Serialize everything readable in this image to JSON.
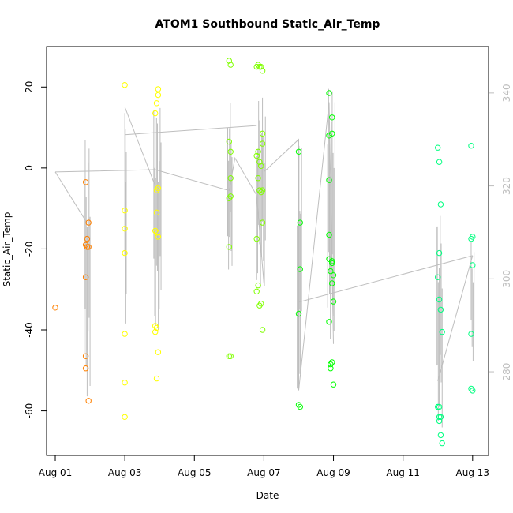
{
  "chart_data": {
    "type": "scatter",
    "title": "ATOM1 Southbound Static_Air_Temp",
    "xlabel": "Date",
    "ylabel": "Static_Air_Temp",
    "x_ticks": [
      "Aug 01",
      "Aug 03",
      "Aug 05",
      "Aug 07",
      "Aug 09",
      "Aug 11",
      "Aug 13"
    ],
    "xlim": [
      "2016-07-31T18:00",
      "2016-08-13T11:00"
    ],
    "ylim": [
      -71,
      30
    ],
    "y_ticks": [
      -60,
      -40,
      -20,
      0,
      20
    ],
    "y_tick_labels": [
      "-60",
      "-40",
      "-20",
      "0",
      "20"
    ],
    "y2lim": [
      262,
      350
    ],
    "y2_ticks": [
      280,
      300,
      320,
      340
    ],
    "y2_tick_labels": [
      "280",
      "300",
      "320",
      "340"
    ],
    "grid": false,
    "legend": "none",
    "point_colors": [
      "#FF8000",
      "#FFFF00",
      "#80FF00",
      "#00FF00",
      "#00FF80"
    ],
    "line_color": "#bebebe",
    "series": [
      {
        "color": "#FF8000",
        "points": [
          {
            "x": "2016-08-01T00:00",
            "y": -34.5
          },
          {
            "x": "2016-08-01T21:00",
            "y": -3.5
          },
          {
            "x": "2016-08-01T21:00",
            "y": -19.0
          },
          {
            "x": "2016-08-01T21:00",
            "y": -27.0
          },
          {
            "x": "2016-08-01T21:00",
            "y": -46.5
          },
          {
            "x": "2016-08-01T21:00",
            "y": -49.5
          },
          {
            "x": "2016-08-01T22:00",
            "y": -19.5
          },
          {
            "x": "2016-08-01T22:00",
            "y": -17.5
          },
          {
            "x": "2016-08-01T23:00",
            "y": -13.5
          },
          {
            "x": "2016-08-01T23:00",
            "y": -19.5
          },
          {
            "x": "2016-08-01T23:00",
            "y": -57.5
          }
        ]
      },
      {
        "color": "#FFFF00",
        "points": [
          {
            "x": "2016-08-03T00:00",
            "y": 20.5
          },
          {
            "x": "2016-08-03T00:00",
            "y": -10.5
          },
          {
            "x": "2016-08-03T00:00",
            "y": -15.0
          },
          {
            "x": "2016-08-03T00:00",
            "y": -21.0
          },
          {
            "x": "2016-08-03T00:00",
            "y": -41.0
          },
          {
            "x": "2016-08-03T00:00",
            "y": -53.0
          },
          {
            "x": "2016-08-03T00:00",
            "y": -61.5
          },
          {
            "x": "2016-08-03T21:00",
            "y": 13.5
          },
          {
            "x": "2016-08-03T21:00",
            "y": -15.5
          },
          {
            "x": "2016-08-03T21:00",
            "y": -39.0
          },
          {
            "x": "2016-08-03T21:00",
            "y": -40.5
          },
          {
            "x": "2016-08-03T22:00",
            "y": 16.0
          },
          {
            "x": "2016-08-03T22:00",
            "y": -5.5
          },
          {
            "x": "2016-08-03T22:00",
            "y": -11.0
          },
          {
            "x": "2016-08-03T22:00",
            "y": -16.0
          },
          {
            "x": "2016-08-03T22:00",
            "y": -39.5
          },
          {
            "x": "2016-08-03T22:00",
            "y": -52.0
          },
          {
            "x": "2016-08-03T23:00",
            "y": 19.5
          },
          {
            "x": "2016-08-03T23:00",
            "y": 18.0
          },
          {
            "x": "2016-08-03T23:00",
            "y": -5.0
          },
          {
            "x": "2016-08-03T23:00",
            "y": -17.0
          },
          {
            "x": "2016-08-03T23:00",
            "y": -45.5
          }
        ]
      },
      {
        "color": "#80FF00",
        "points": [
          {
            "x": "2016-08-06T00:00",
            "y": 26.5
          },
          {
            "x": "2016-08-06T00:00",
            "y": 6.5
          },
          {
            "x": "2016-08-06T00:00",
            "y": -7.5
          },
          {
            "x": "2016-08-06T00:00",
            "y": -19.5
          },
          {
            "x": "2016-08-06T00:00",
            "y": -46.5
          },
          {
            "x": "2016-08-06T01:00",
            "y": 25.5
          },
          {
            "x": "2016-08-06T01:00",
            "y": 4.0
          },
          {
            "x": "2016-08-06T01:00",
            "y": -2.5
          },
          {
            "x": "2016-08-06T01:00",
            "y": -7.0
          },
          {
            "x": "2016-08-06T01:00",
            "y": -46.5
          },
          {
            "x": "2016-08-06T19:00",
            "y": 25.0
          },
          {
            "x": "2016-08-06T19:00",
            "y": 3.0
          },
          {
            "x": "2016-08-06T19:00",
            "y": -17.5
          },
          {
            "x": "2016-08-06T19:00",
            "y": -30.5
          },
          {
            "x": "2016-08-06T20:00",
            "y": 25.5
          },
          {
            "x": "2016-08-06T20:00",
            "y": 4.0
          },
          {
            "x": "2016-08-06T20:00",
            "y": -2.5
          },
          {
            "x": "2016-08-06T20:00",
            "y": -29.0
          },
          {
            "x": "2016-08-06T21:00",
            "y": 25.0
          },
          {
            "x": "2016-08-06T21:00",
            "y": 1.5
          },
          {
            "x": "2016-08-06T21:00",
            "y": -5.5
          },
          {
            "x": "2016-08-06T21:00",
            "y": -34.0
          },
          {
            "x": "2016-08-06T22:00",
            "y": 25.0
          },
          {
            "x": "2016-08-06T22:00",
            "y": 0.5
          },
          {
            "x": "2016-08-06T22:00",
            "y": -6.0
          },
          {
            "x": "2016-08-06T22:00",
            "y": -33.5
          },
          {
            "x": "2016-08-06T23:00",
            "y": 24.0
          },
          {
            "x": "2016-08-06T23:00",
            "y": 8.5
          },
          {
            "x": "2016-08-06T23:00",
            "y": 6.0
          },
          {
            "x": "2016-08-06T23:00",
            "y": -5.5
          },
          {
            "x": "2016-08-06T23:00",
            "y": -13.5
          },
          {
            "x": "2016-08-06T23:00",
            "y": -40.0
          }
        ]
      },
      {
        "color": "#00FF00",
        "points": [
          {
            "x": "2016-08-08T00:00",
            "y": 4.0
          },
          {
            "x": "2016-08-08T00:00",
            "y": -36.0
          },
          {
            "x": "2016-08-08T00:00",
            "y": -58.5
          },
          {
            "x": "2016-08-08T01:00",
            "y": -13.5
          },
          {
            "x": "2016-08-08T01:00",
            "y": -25.0
          },
          {
            "x": "2016-08-08T01:00",
            "y": -59.0
          },
          {
            "x": "2016-08-08T21:00",
            "y": 18.5
          },
          {
            "x": "2016-08-08T21:00",
            "y": 8.0
          },
          {
            "x": "2016-08-08T21:00",
            "y": -3.0
          },
          {
            "x": "2016-08-08T21:00",
            "y": -16.5
          },
          {
            "x": "2016-08-08T21:00",
            "y": -22.5
          },
          {
            "x": "2016-08-08T21:00",
            "y": -38.0
          },
          {
            "x": "2016-08-08T22:00",
            "y": -25.5
          },
          {
            "x": "2016-08-08T22:00",
            "y": -48.5
          },
          {
            "x": "2016-08-08T22:00",
            "y": -49.5
          },
          {
            "x": "2016-08-08T23:00",
            "y": 12.5
          },
          {
            "x": "2016-08-08T23:00",
            "y": 8.5
          },
          {
            "x": "2016-08-08T23:00",
            "y": -23.0
          },
          {
            "x": "2016-08-08T23:00",
            "y": -23.5
          },
          {
            "x": "2016-08-08T23:00",
            "y": -28.5
          },
          {
            "x": "2016-08-08T23:00",
            "y": -48.0
          },
          {
            "x": "2016-08-09T00:00",
            "y": -26.5
          },
          {
            "x": "2016-08-09T00:00",
            "y": -33.0
          },
          {
            "x": "2016-08-09T00:00",
            "y": -53.5
          }
        ]
      },
      {
        "color": "#00FF80",
        "points": [
          {
            "x": "2016-08-12T00:00",
            "y": 5.0
          },
          {
            "x": "2016-08-12T00:00",
            "y": -27.0
          },
          {
            "x": "2016-08-12T00:00",
            "y": -59.0
          },
          {
            "x": "2016-08-12T01:00",
            "y": 1.5
          },
          {
            "x": "2016-08-12T01:00",
            "y": -21.0
          },
          {
            "x": "2016-08-12T01:00",
            "y": -32.5
          },
          {
            "x": "2016-08-12T01:00",
            "y": -59.0
          },
          {
            "x": "2016-08-12T01:00",
            "y": -61.5
          },
          {
            "x": "2016-08-12T01:00",
            "y": -62.5
          },
          {
            "x": "2016-08-12T02:00",
            "y": -9.0
          },
          {
            "x": "2016-08-12T02:00",
            "y": -35.0
          },
          {
            "x": "2016-08-12T02:00",
            "y": -61.5
          },
          {
            "x": "2016-08-12T02:00",
            "y": -66.0
          },
          {
            "x": "2016-08-12T03:00",
            "y": -40.5
          },
          {
            "x": "2016-08-12T03:00",
            "y": -68.0
          },
          {
            "x": "2016-08-12T23:00",
            "y": 5.5
          },
          {
            "x": "2016-08-12T23:00",
            "y": -17.5
          },
          {
            "x": "2016-08-12T23:00",
            "y": -41.0
          },
          {
            "x": "2016-08-12T23:00",
            "y": -54.5
          },
          {
            "x": "2016-08-13T00:00",
            "y": -17.0
          },
          {
            "x": "2016-08-13T00:00",
            "y": -24.0
          },
          {
            "x": "2016-08-13T00:00",
            "y": -55.0
          }
        ]
      }
    ],
    "trace_segments": [
      [
        [
          "2016-08-01T00:00",
          323
        ],
        [
          "2016-08-03T21:00",
          323.5
        ],
        [
          "2016-08-06T00:00",
          319
        ],
        [
          "2016-08-06T04:00",
          326
        ],
        [
          "2016-08-06T19:00",
          318
        ],
        [
          "2016-08-07T00:00",
          299
        ],
        [
          "2016-08-07T00:00",
          323
        ],
        [
          "2016-08-08T00:00",
          330
        ],
        [
          "2016-08-08T00:00",
          276
        ],
        [
          "2016-08-08T21:00",
          338
        ],
        [
          "2016-08-09T00:00",
          286
        ]
      ],
      [
        [
          "2016-08-01T00:00",
          323
        ],
        [
          "2016-08-01T22:00",
          312
        ]
      ],
      [
        [
          "2016-08-03T00:00",
          337
        ],
        [
          "2016-08-03T21:00",
          320
        ]
      ],
      [
        [
          "2016-08-03T00:00",
          331
        ],
        [
          "2016-08-06T19:00",
          333
        ]
      ],
      [
        [
          "2016-08-08T00:00",
          295
        ],
        [
          "2016-08-13T00:00",
          305
        ]
      ],
      [
        [
          "2016-08-12T00:00",
          278
        ],
        [
          "2016-08-13T00:00",
          305
        ]
      ]
    ],
    "trace_bands": [
      {
        "x0": "2016-08-01T20:00",
        "x1": "2016-08-02T00:00",
        "low": 274,
        "high": 330
      },
      {
        "x0": "2016-08-03T00:00",
        "x1": "2016-08-03T01:00",
        "low": 290,
        "high": 337
      },
      {
        "x0": "2016-08-03T20:00",
        "x1": "2016-08-04T01:00",
        "low": 288,
        "high": 337
      },
      {
        "x0": "2016-08-05T23:00",
        "x1": "2016-08-06T02:00",
        "low": 302,
        "high": 338
      },
      {
        "x0": "2016-08-06T19:00",
        "x1": "2016-08-07T01:00",
        "low": 298,
        "high": 339
      },
      {
        "x0": "2016-08-07T23:00",
        "x1": "2016-08-08T02:00",
        "low": 276,
        "high": 330
      },
      {
        "x0": "2016-08-08T20:00",
        "x1": "2016-08-09T01:00",
        "low": 287,
        "high": 341
      },
      {
        "x0": "2016-08-11T23:00",
        "x1": "2016-08-12T03:00",
        "low": 268,
        "high": 314
      },
      {
        "x0": "2016-08-12T23:00",
        "x1": "2016-08-13T01:00",
        "low": 282,
        "high": 308
      }
    ]
  }
}
